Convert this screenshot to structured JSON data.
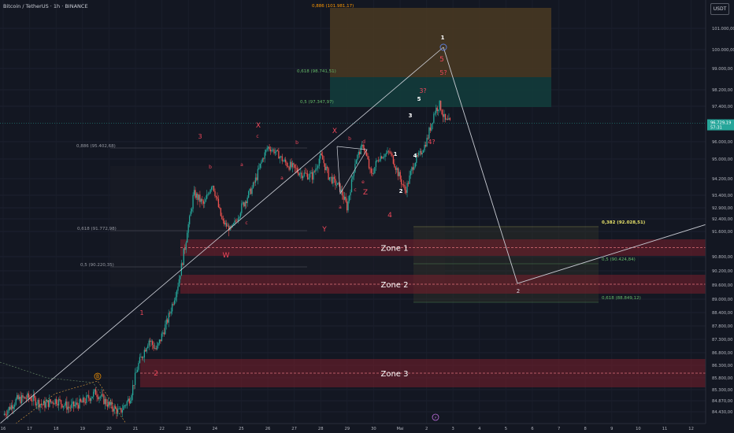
{
  "header": {
    "title": "Bitcoin / TetherUS · 1h · BINANCE",
    "currency": "USDT"
  },
  "colors": {
    "background": "#131722",
    "bull_candle": "#26a69a",
    "bear_candle": "#ef5350",
    "zone_fill": "#7a1f2b",
    "zone_line": "#e0707a",
    "orange_box": "#4a3a22",
    "teal_box": "#133b3b",
    "wave_red": "#f0475a",
    "wave_white": "#ffffff",
    "price_tag": "#26a69a",
    "fib_green": "#66bb6a",
    "fib_orange": "#ff9800",
    "fib_gray": "#9598a1",
    "fib_yellow": "#e8e36a"
  },
  "chart_data": {
    "type": "candlestick",
    "symbol": "Bitcoin / TetherUS",
    "timeframe": "1h",
    "exchange": "BINANCE",
    "x_tick_labels": [
      "16",
      "17",
      "18",
      "19",
      "20",
      "21",
      "22",
      "23",
      "24",
      "25",
      "26",
      "27",
      "28",
      "29",
      "30",
      "Mai",
      "2",
      "3",
      "4",
      "5",
      "6",
      "7",
      "8",
      "9",
      "10",
      "11",
      "12"
    ],
    "y_tick_labels": [
      "101.000,00",
      "100.000,00",
      "99.000,00",
      "98.200,00",
      "97.400,00",
      "96.000,00",
      "95.000,00",
      "94.200,00",
      "93.400,00",
      "92.900,00",
      "92.400,00",
      "91.600,00",
      "90.800,00",
      "90.200,00",
      "89.600,00",
      "89.000,00",
      "88.400,00",
      "87.800,00",
      "87.300,00",
      "86.800,00",
      "86.300,00",
      "85.800,00",
      "85.300,00",
      "84.870,00",
      "84.430,00"
    ],
    "last_price": {
      "label": "96.729,19",
      "countdown": "57:31",
      "value": 96729.19
    },
    "price_path": [
      [
        0,
        84300
      ],
      [
        0.5,
        84900
      ],
      [
        1,
        85000
      ],
      [
        1.5,
        84700
      ],
      [
        2,
        84900
      ],
      [
        2.5,
        84600
      ],
      [
        3,
        84800
      ],
      [
        3.5,
        85200
      ],
      [
        4,
        84700
      ],
      [
        4.4,
        84400
      ],
      [
        4.8,
        85000
      ],
      [
        5.1,
        86300
      ],
      [
        5.5,
        87300
      ],
      [
        5.8,
        86900
      ],
      [
        6.2,
        88000
      ],
      [
        6.6,
        89600
      ],
      [
        6.9,
        91300
      ],
      [
        7.2,
        93500
      ],
      [
        7.6,
        93000
      ],
      [
        7.9,
        94000
      ],
      [
        8.3,
        92200
      ],
      [
        8.6,
        91700
      ],
      [
        9.0,
        92900
      ],
      [
        9.4,
        93700
      ],
      [
        9.8,
        95000
      ],
      [
        10.0,
        95700
      ],
      [
        10.3,
        95400
      ],
      [
        10.6,
        94900
      ],
      [
        11.0,
        94600
      ],
      [
        11.3,
        94400
      ],
      [
        11.7,
        94300
      ],
      [
        12.0,
        95200
      ],
      [
        12.3,
        94300
      ],
      [
        12.7,
        93800
      ],
      [
        13.0,
        92900
      ],
      [
        13.3,
        94900
      ],
      [
        13.6,
        95800
      ],
      [
        13.9,
        94300
      ],
      [
        14.2,
        95100
      ],
      [
        14.6,
        95400
      ],
      [
        14.9,
        94500
      ],
      [
        15.2,
        93600
      ],
      [
        15.5,
        94800
      ],
      [
        15.8,
        95400
      ],
      [
        16.0,
        96000
      ],
      [
        16.3,
        97200
      ],
      [
        16.5,
        97500
      ],
      [
        16.7,
        96800
      ],
      [
        16.9,
        96729
      ]
    ],
    "fib_levels": [
      {
        "label": "0,886 (101.981,17)",
        "color": "orange"
      },
      {
        "label": "0,618 (98.741,51)",
        "color": "green"
      },
      {
        "label": "0,5 (97.347,97)",
        "color": "green"
      },
      {
        "label": "0,886 (95.402,68)",
        "color": "gray"
      },
      {
        "label": "0,618 (91.772,98)",
        "color": "gray"
      },
      {
        "label": "0,5 (90.220,35)",
        "color": "gray"
      },
      {
        "label": "0,382 (92.028,51)",
        "color": "yellow"
      },
      {
        "label": "0,5 (90.424,84)",
        "color": "green"
      },
      {
        "label": "0,618 (88.849,12)",
        "color": "green"
      }
    ],
    "zones": [
      {
        "label": "Zone 1",
        "range": [
          90800,
          91500
        ]
      },
      {
        "label": "Zone 2",
        "range": [
          89000,
          89900
        ]
      },
      {
        "label": "Zone 3",
        "range": [
          85700,
          86500
        ]
      }
    ],
    "projection": {
      "points": [
        [
          16.9,
          100300
        ],
        [
          19.4,
          89700
        ],
        [
          26.5,
          92400
        ]
      ],
      "labels": [
        "1",
        "2"
      ]
    },
    "wave_labels": {
      "red": [
        "3",
        "X",
        "c",
        "b",
        "a",
        "b",
        "a",
        "c",
        "W",
        "X",
        "b",
        "d",
        "a",
        "c",
        "e",
        "Z",
        "Y",
        "4",
        "5",
        "5?",
        "3?",
        "4?",
        "1",
        "2"
      ],
      "white": [
        "1",
        "2",
        "3",
        "4",
        "5",
        "1"
      ],
      "orange": [
        "B"
      ]
    },
    "bottom_marker": "⚡"
  }
}
